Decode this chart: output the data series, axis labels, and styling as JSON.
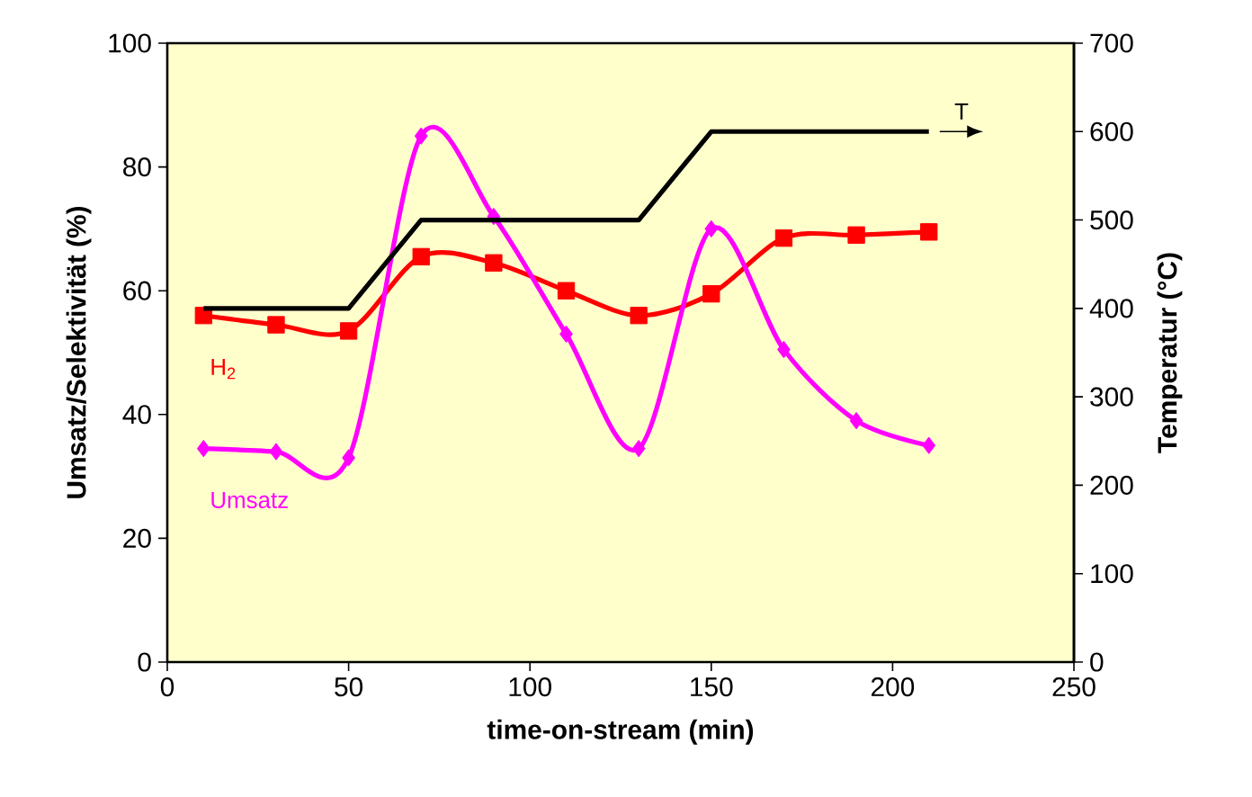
{
  "chart_data": {
    "type": "line",
    "xlabel": "time-on-stream (min)",
    "ylabel": "Umsatz/Selektivität (%)",
    "y2label": "Temperatur (°C)",
    "xlim": [
      0,
      250
    ],
    "xticks": [
      0,
      50,
      100,
      150,
      200,
      250
    ],
    "ylim": [
      0,
      100
    ],
    "yticks": [
      0,
      20,
      40,
      60,
      80,
      100
    ],
    "y2lim": [
      0,
      700
    ],
    "y2ticks": [
      0,
      100,
      200,
      300,
      400,
      500,
      600,
      700
    ],
    "series": [
      {
        "name": "H$_{2}$",
        "color": "#ff0000",
        "marker": "square",
        "x": [
          10,
          30,
          50,
          70,
          90,
          110,
          130,
          150,
          170,
          190,
          210
        ],
        "values": [
          56,
          54.5,
          53.5,
          65.5,
          64.5,
          60,
          56,
          59.5,
          68.5,
          69,
          69.5
        ]
      },
      {
        "name": "Umsatz",
        "color": "#ff00ff",
        "marker": "diamond",
        "x": [
          10,
          30,
          50,
          70,
          90,
          110,
          130,
          150,
          170,
          190,
          210
        ],
        "values": [
          34.5,
          34,
          33,
          85,
          72,
          53,
          34.5,
          70,
          50.5,
          39,
          35
        ]
      },
      {
        "name": "T",
        "color": "#000000",
        "marker": "none",
        "axis": "y2",
        "x": [
          10,
          50,
          70,
          130,
          150,
          210
        ],
        "values": [
          400,
          400,
          500,
          500,
          600,
          600
        ]
      }
    ]
  }
}
